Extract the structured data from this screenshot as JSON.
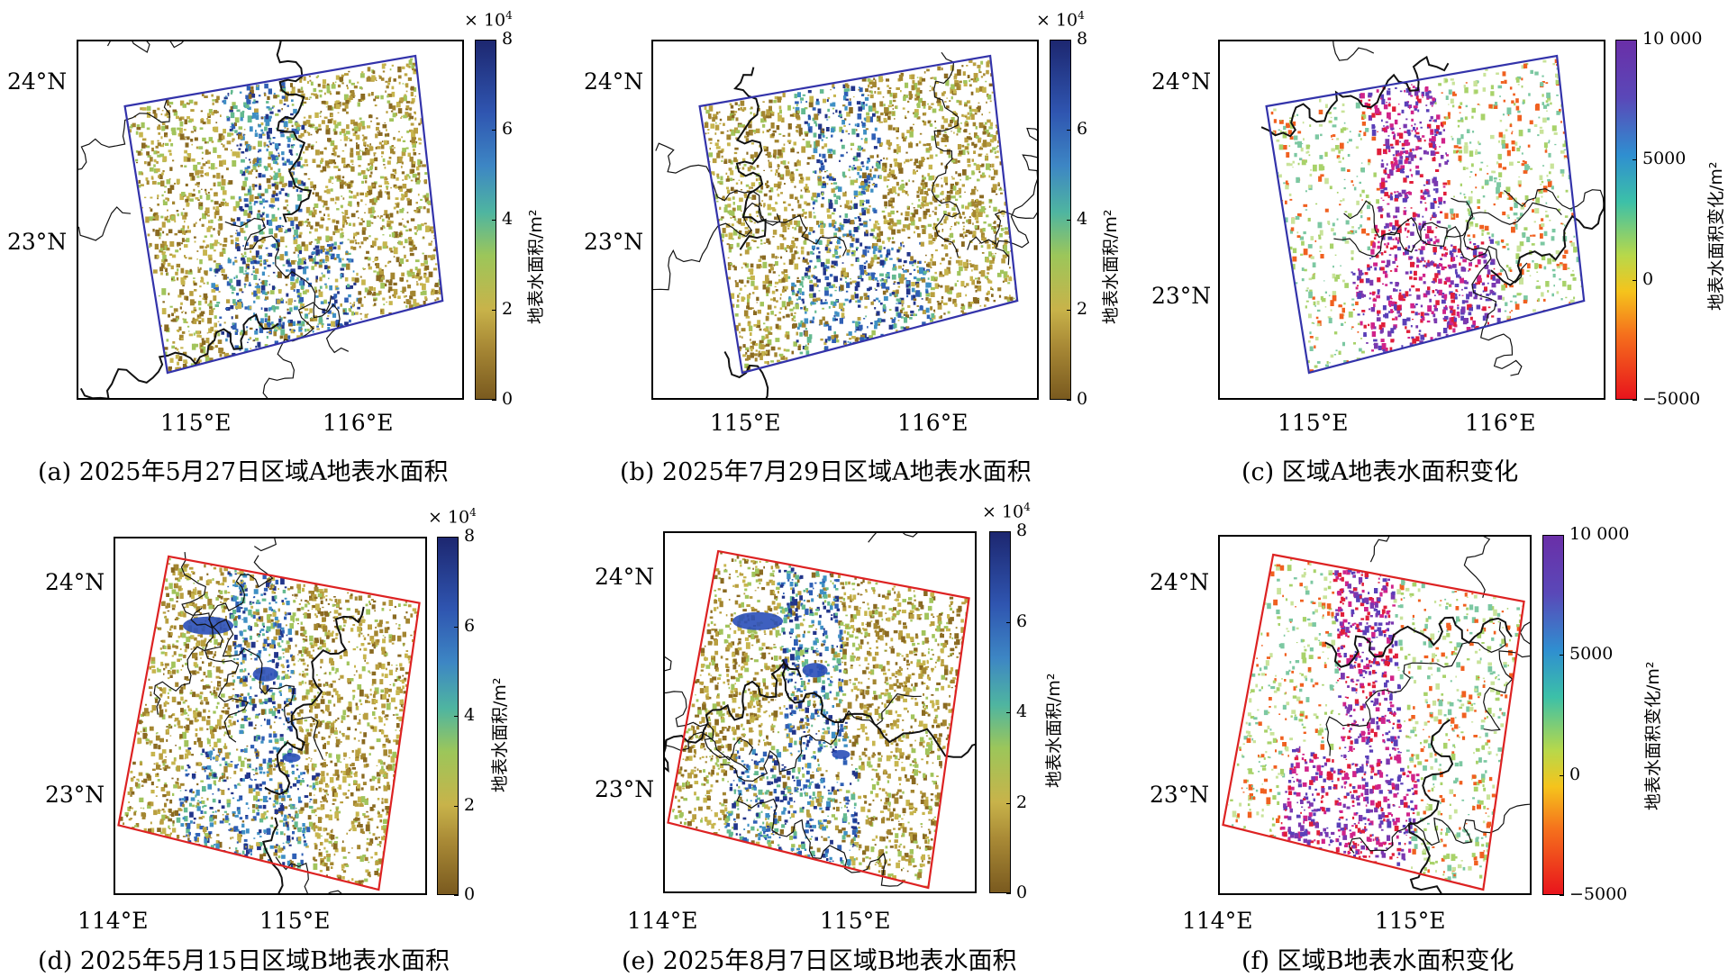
{
  "panels": [
    {
      "caption": "(a) 2025年5月27日区域A地表水面积",
      "lat_labels": [
        "24°N",
        "23°N"
      ],
      "lon_labels": [
        "115°E",
        "116°E"
      ],
      "colorbar": {
        "label": "地表水面积/m²",
        "multiplier": "× 10",
        "multiplier_exp": "4",
        "ticks": [
          "8",
          "6",
          "4",
          "2",
          "0"
        ],
        "colormap": "earth-blue",
        "range": [
          0,
          80000
        ]
      },
      "boundary_color": "#3333aa",
      "pattern": "water-A1"
    },
    {
      "caption": "(b) 2025年7月29日区域A地表水面积",
      "lat_labels": [
        "24°N",
        "23°N"
      ],
      "lon_labels": [
        "115°E",
        "116°E"
      ],
      "colorbar": {
        "label": "地表水面积/m²",
        "multiplier": "× 10",
        "multiplier_exp": "4",
        "ticks": [
          "8",
          "6",
          "4",
          "2",
          "0"
        ],
        "colormap": "earth-blue",
        "range": [
          0,
          80000
        ]
      },
      "boundary_color": "#3333aa",
      "pattern": "water-A2"
    },
    {
      "caption": "(c) 区域A地表水面积变化",
      "lat_labels": [
        "24°N",
        "23°N"
      ],
      "lon_labels": [
        "115°E",
        "116°E"
      ],
      "colorbar": {
        "label": "地表水面积变化/m²",
        "multiplier": "",
        "multiplier_exp": "",
        "ticks": [
          "10 000",
          "5000",
          "0",
          "−5000"
        ],
        "colormap": "change",
        "range": [
          -5000,
          10000
        ]
      },
      "boundary_color": "#3333aa",
      "pattern": "change-A"
    },
    {
      "caption": "(d) 2025年5月15日区域B地表水面积",
      "lat_labels": [
        "24°N",
        "23°N"
      ],
      "lon_labels": [
        "114°E",
        "115°E"
      ],
      "colorbar": {
        "label": "地表水面积/m²",
        "multiplier": "× 10",
        "multiplier_exp": "4",
        "ticks": [
          "8",
          "6",
          "4",
          "2",
          "0"
        ],
        "colormap": "earth-blue",
        "range": [
          0,
          80000
        ]
      },
      "boundary_color": "#dd2222",
      "pattern": "water-B1"
    },
    {
      "caption": "(e) 2025年8月7日区域B地表水面积",
      "lat_labels": [
        "24°N",
        "23°N"
      ],
      "lon_labels": [
        "114°E",
        "115°E"
      ],
      "colorbar": {
        "label": "地表水面积/m²",
        "multiplier": "× 10",
        "multiplier_exp": "4",
        "ticks": [
          "8",
          "6",
          "4",
          "2",
          "0"
        ],
        "colormap": "earth-blue",
        "range": [
          0,
          80000
        ]
      },
      "boundary_color": "#dd2222",
      "pattern": "water-B2"
    },
    {
      "caption": "(f) 区域B地表水面积变化",
      "lat_labels": [
        "24°N",
        "23°N"
      ],
      "lon_labels": [
        "114°E",
        "115°E"
      ],
      "colorbar": {
        "label": "地表水面积变化/m²",
        "multiplier": "",
        "multiplier_exp": "",
        "ticks": [
          "10 000",
          "5000",
          "0",
          "−5000"
        ],
        "colormap": "change",
        "range": [
          -5000,
          10000
        ]
      },
      "boundary_color": "#dd2222",
      "pattern": "change-B"
    }
  ]
}
